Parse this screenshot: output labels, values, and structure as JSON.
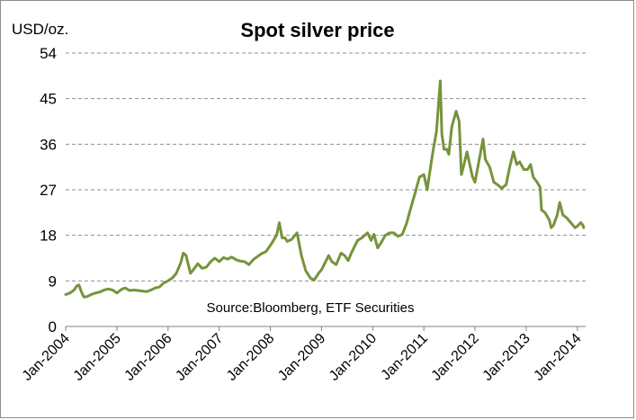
{
  "chart_data": {
    "type": "line",
    "title": "Spot silver price",
    "ylabel": "USD/oz.",
    "xlabel": "",
    "annotation": "Source:Bloomberg, ETF Securities",
    "ylim": [
      0,
      54
    ],
    "yticks": [
      0,
      9,
      18,
      27,
      36,
      45,
      54
    ],
    "xlim": [
      "2004-01",
      "2014-03"
    ],
    "xticks": [
      "Jan-2004",
      "Jan-2005",
      "Jan-2006",
      "Jan-2007",
      "Jan-2008",
      "Jan-2009",
      "Jan-2010",
      "Jan-2011",
      "Jan-2012",
      "Jan-2013",
      "Jan-2014"
    ],
    "grid": "horizontal dashed",
    "series": [
      {
        "color": "#77933c",
        "points": [
          [
            "2004-01-01",
            6.3
          ],
          [
            "2004-02-01",
            6.6
          ],
          [
            "2004-03-01",
            7.2
          ],
          [
            "2004-03-20",
            8.0
          ],
          [
            "2004-04-05",
            8.2
          ],
          [
            "2004-04-20",
            7.0
          ],
          [
            "2004-05-10",
            5.8
          ],
          [
            "2004-06-01",
            5.9
          ],
          [
            "2004-07-01",
            6.3
          ],
          [
            "2004-08-01",
            6.6
          ],
          [
            "2004-09-01",
            6.8
          ],
          [
            "2004-10-01",
            7.2
          ],
          [
            "2004-11-01",
            7.4
          ],
          [
            "2004-12-01",
            7.2
          ],
          [
            "2005-01-01",
            6.6
          ],
          [
            "2005-02-01",
            7.3
          ],
          [
            "2005-03-01",
            7.6
          ],
          [
            "2005-04-01",
            7.1
          ],
          [
            "2005-05-01",
            7.2
          ],
          [
            "2005-06-01",
            7.1
          ],
          [
            "2005-07-01",
            7.0
          ],
          [
            "2005-08-01",
            6.9
          ],
          [
            "2005-09-01",
            7.2
          ],
          [
            "2005-10-01",
            7.6
          ],
          [
            "2005-11-01",
            7.8
          ],
          [
            "2005-12-01",
            8.6
          ],
          [
            "2006-01-01",
            9.0
          ],
          [
            "2006-02-01",
            9.6
          ],
          [
            "2006-03-01",
            10.5
          ],
          [
            "2006-04-01",
            12.5
          ],
          [
            "2006-04-20",
            14.5
          ],
          [
            "2006-05-10",
            14.0
          ],
          [
            "2006-06-10",
            10.5
          ],
          [
            "2006-07-01",
            11.2
          ],
          [
            "2006-08-01",
            12.4
          ],
          [
            "2006-09-01",
            11.5
          ],
          [
            "2006-10-01",
            11.7
          ],
          [
            "2006-11-01",
            12.8
          ],
          [
            "2006-12-01",
            13.5
          ],
          [
            "2007-01-01",
            12.8
          ],
          [
            "2007-02-01",
            13.6
          ],
          [
            "2007-03-01",
            13.3
          ],
          [
            "2007-04-01",
            13.7
          ],
          [
            "2007-05-01",
            13.2
          ],
          [
            "2007-06-01",
            12.9
          ],
          [
            "2007-07-01",
            12.8
          ],
          [
            "2007-08-01",
            12.2
          ],
          [
            "2007-09-01",
            13.2
          ],
          [
            "2007-10-01",
            13.8
          ],
          [
            "2007-11-01",
            14.4
          ],
          [
            "2007-12-01",
            14.8
          ],
          [
            "2008-01-01",
            16.0
          ],
          [
            "2008-02-15",
            18.0
          ],
          [
            "2008-03-05",
            20.5
          ],
          [
            "2008-03-25",
            17.5
          ],
          [
            "2008-04-15",
            17.5
          ],
          [
            "2008-05-01",
            16.8
          ],
          [
            "2008-06-01",
            17.2
          ],
          [
            "2008-07-10",
            18.5
          ],
          [
            "2008-08-10",
            14.0
          ],
          [
            "2008-09-10",
            11.0
          ],
          [
            "2008-10-15",
            9.5
          ],
          [
            "2008-11-10",
            9.2
          ],
          [
            "2008-12-10",
            10.5
          ],
          [
            "2009-01-01",
            11.2
          ],
          [
            "2009-02-20",
            14.0
          ],
          [
            "2009-03-15",
            12.8
          ],
          [
            "2009-04-15",
            12.2
          ],
          [
            "2009-05-20",
            14.5
          ],
          [
            "2009-06-15",
            14.0
          ],
          [
            "2009-07-10",
            13.0
          ],
          [
            "2009-08-01",
            14.5
          ],
          [
            "2009-09-15",
            17.0
          ],
          [
            "2009-10-15",
            17.5
          ],
          [
            "2009-11-25",
            18.5
          ],
          [
            "2009-12-20",
            17.0
          ],
          [
            "2010-01-10",
            18.2
          ],
          [
            "2010-02-05",
            15.5
          ],
          [
            "2010-03-01",
            16.5
          ],
          [
            "2010-04-01",
            18.0
          ],
          [
            "2010-05-01",
            18.5
          ],
          [
            "2010-06-01",
            18.5
          ],
          [
            "2010-07-01",
            17.8
          ],
          [
            "2010-08-01",
            18.2
          ],
          [
            "2010-09-01",
            20.5
          ],
          [
            "2010-10-01",
            23.5
          ],
          [
            "2010-11-01",
            26.5
          ],
          [
            "2010-12-01",
            29.5
          ],
          [
            "2011-01-01",
            30.0
          ],
          [
            "2011-01-25",
            27.0
          ],
          [
            "2011-02-15",
            31.0
          ],
          [
            "2011-03-10",
            35.0
          ],
          [
            "2011-04-01",
            38.5
          ],
          [
            "2011-04-28",
            48.5
          ],
          [
            "2011-05-10",
            38.0
          ],
          [
            "2011-05-25",
            35.0
          ],
          [
            "2011-06-15",
            35.0
          ],
          [
            "2011-06-28",
            34.0
          ],
          [
            "2011-07-20",
            39.5
          ],
          [
            "2011-08-20",
            42.5
          ],
          [
            "2011-09-10",
            40.5
          ],
          [
            "2011-09-26",
            30.0
          ],
          [
            "2011-10-15",
            32.0
          ],
          [
            "2011-11-05",
            34.5
          ],
          [
            "2011-12-15",
            29.5
          ],
          [
            "2012-01-01",
            28.5
          ],
          [
            "2012-02-28",
            37.0
          ],
          [
            "2012-03-15",
            33.0
          ],
          [
            "2012-04-15",
            31.5
          ],
          [
            "2012-05-15",
            28.5
          ],
          [
            "2012-06-10",
            28.0
          ],
          [
            "2012-07-10",
            27.3
          ],
          [
            "2012-08-10",
            28.0
          ],
          [
            "2012-09-05",
            31.5
          ],
          [
            "2012-10-01",
            34.5
          ],
          [
            "2012-10-25",
            32.0
          ],
          [
            "2012-11-15",
            32.5
          ],
          [
            "2012-12-15",
            31.0
          ],
          [
            "2013-01-10",
            31.0
          ],
          [
            "2013-02-01",
            32.0
          ],
          [
            "2013-02-20",
            29.5
          ],
          [
            "2013-03-20",
            28.5
          ],
          [
            "2013-04-10",
            27.5
          ],
          [
            "2013-04-20",
            23.0
          ],
          [
            "2013-05-15",
            22.5
          ],
          [
            "2013-06-15",
            21.0
          ],
          [
            "2013-06-28",
            19.5
          ],
          [
            "2013-07-15",
            20.0
          ],
          [
            "2013-08-10",
            22.0
          ],
          [
            "2013-08-28",
            24.5
          ],
          [
            "2013-09-20",
            22.0
          ],
          [
            "2013-10-15",
            21.5
          ],
          [
            "2013-11-15",
            20.5
          ],
          [
            "2013-12-15",
            19.5
          ],
          [
            "2014-01-01",
            19.8
          ],
          [
            "2014-01-25",
            20.5
          ],
          [
            "2014-02-10",
            20.0
          ],
          [
            "2014-02-15",
            19.5
          ]
        ]
      }
    ]
  }
}
